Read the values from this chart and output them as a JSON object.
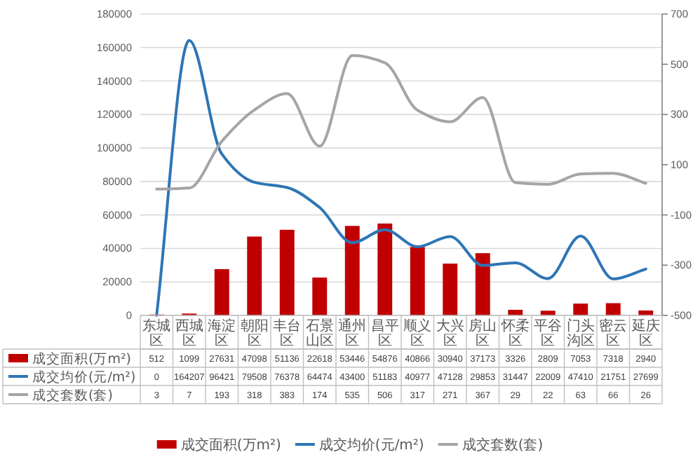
{
  "chart_data": {
    "type": "bar",
    "categories": [
      "东城区",
      "西城区",
      "海淀区",
      "朝阳区",
      "丰台区",
      "石景山区",
      "通州区",
      "昌平区",
      "顺义区",
      "大兴区",
      "房山区",
      "怀柔区",
      "平谷区",
      "门头沟区",
      "密云区",
      "延庆区"
    ],
    "series": [
      {
        "name": "成交面积(万m²)",
        "color": "#c00000",
        "values": [
          512,
          1099,
          27631,
          47098,
          51136,
          22618,
          53446,
          54876,
          40866,
          30940,
          37173,
          3326,
          2809,
          7053,
          7318,
          2940
        ]
      },
      {
        "name": "成交均价(元/m²)",
        "type": "line",
        "color": "#2e75b6",
        "values": [
          0,
          164207,
          96421,
          79508,
          76378,
          64474,
          43400,
          51183,
          40977,
          47128,
          29853,
          31447,
          22009,
          47410,
          21751,
          27699
        ]
      },
      {
        "name": "成交套数(套)",
        "type": "line",
        "axis": "y2",
        "color": "#a5a5a5",
        "values": [
          3,
          7,
          193,
          318,
          383,
          174,
          535,
          506,
          317,
          271,
          367,
          29,
          22,
          63,
          66,
          26
        ]
      }
    ],
    "ylim": [
      0,
      180000
    ],
    "yticks": [
      0,
      20000,
      40000,
      60000,
      80000,
      100000,
      120000,
      140000,
      160000,
      180000
    ],
    "y2lim": [
      -500,
      700
    ],
    "y2ticks": [
      -500,
      -300,
      -100,
      100,
      300,
      500,
      700
    ],
    "grid": "y",
    "legend": "bottom",
    "data_labels": true,
    "marker": "none",
    "line_style": "solid"
  }
}
